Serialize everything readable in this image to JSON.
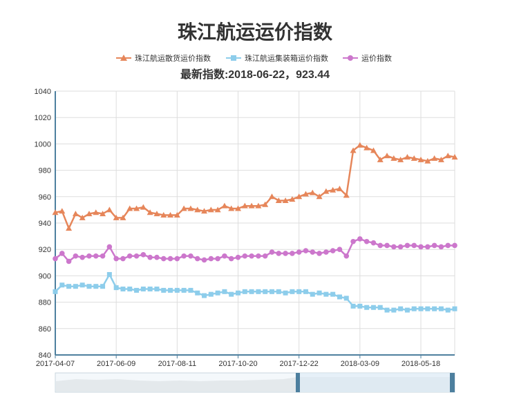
{
  "chart_data": {
    "type": "line",
    "title": "珠江航运运价指数",
    "subtitle": "最新指数:2018-06-22，923.44",
    "xlabel": "",
    "ylabel": "",
    "ylim": [
      840,
      1040
    ],
    "yticks": [
      840,
      860,
      880,
      900,
      920,
      940,
      960,
      980,
      1000,
      1020,
      1040
    ],
    "xtick_labels": [
      "2017-04-07",
      "2017-06-09",
      "2017-08-11",
      "2017-10-20",
      "2017-12-22",
      "2018-03-09",
      "2018-05-18"
    ],
    "xtick_indices": [
      0,
      9,
      18,
      27,
      36,
      45,
      54
    ],
    "grid": true,
    "legend_position": "top",
    "colors": {
      "bulk": "#E6865A",
      "container": "#8DCDEB",
      "composite": "#CC77CC",
      "axis": "#4D7F9E",
      "grid": "#DDDDDD"
    },
    "series": [
      {
        "name": "珠江航运散货运价指数",
        "marker": "triangle",
        "values": [
          948,
          949,
          936,
          947,
          944,
          947,
          948,
          947,
          950,
          944,
          944,
          951,
          951,
          952,
          948,
          947,
          946,
          946,
          946,
          951,
          951,
          950,
          949,
          950,
          950,
          953,
          951,
          951,
          953,
          953,
          953,
          954,
          960,
          957,
          957,
          958,
          960,
          962,
          963,
          960,
          964,
          965,
          966,
          961,
          995,
          999,
          997,
          995,
          988,
          991,
          989,
          988,
          990,
          989,
          988,
          987,
          989,
          988,
          991,
          990
        ]
      },
      {
        "name": "珠江航运集装箱运价指数",
        "marker": "square",
        "values": [
          888,
          893,
          892,
          892,
          893,
          892,
          892,
          892,
          901,
          891,
          890,
          890,
          889,
          890,
          890,
          890,
          889,
          889,
          889,
          889,
          889,
          887,
          885,
          886,
          887,
          888,
          886,
          887,
          888,
          888,
          888,
          888,
          888,
          888,
          887,
          888,
          888,
          888,
          886,
          887,
          886,
          886,
          884,
          883,
          877,
          877,
          876,
          876,
          876,
          874,
          874,
          875,
          874,
          875,
          875,
          875,
          875,
          875,
          874,
          875
        ]
      },
      {
        "name": "运价指数",
        "marker": "circle",
        "values": [
          913,
          917,
          911,
          915,
          914,
          915,
          915,
          915,
          922,
          913,
          913,
          915,
          915,
          916,
          914,
          914,
          913,
          913,
          913,
          915,
          915,
          913,
          912,
          913,
          913,
          915,
          913,
          914,
          915,
          915,
          915,
          915,
          918,
          917,
          917,
          917,
          918,
          919,
          918,
          917,
          918,
          919,
          920,
          915,
          926,
          928,
          926,
          925,
          923,
          923,
          922,
          922,
          923,
          923,
          922,
          922,
          923,
          922,
          923,
          923
        ]
      }
    ]
  }
}
